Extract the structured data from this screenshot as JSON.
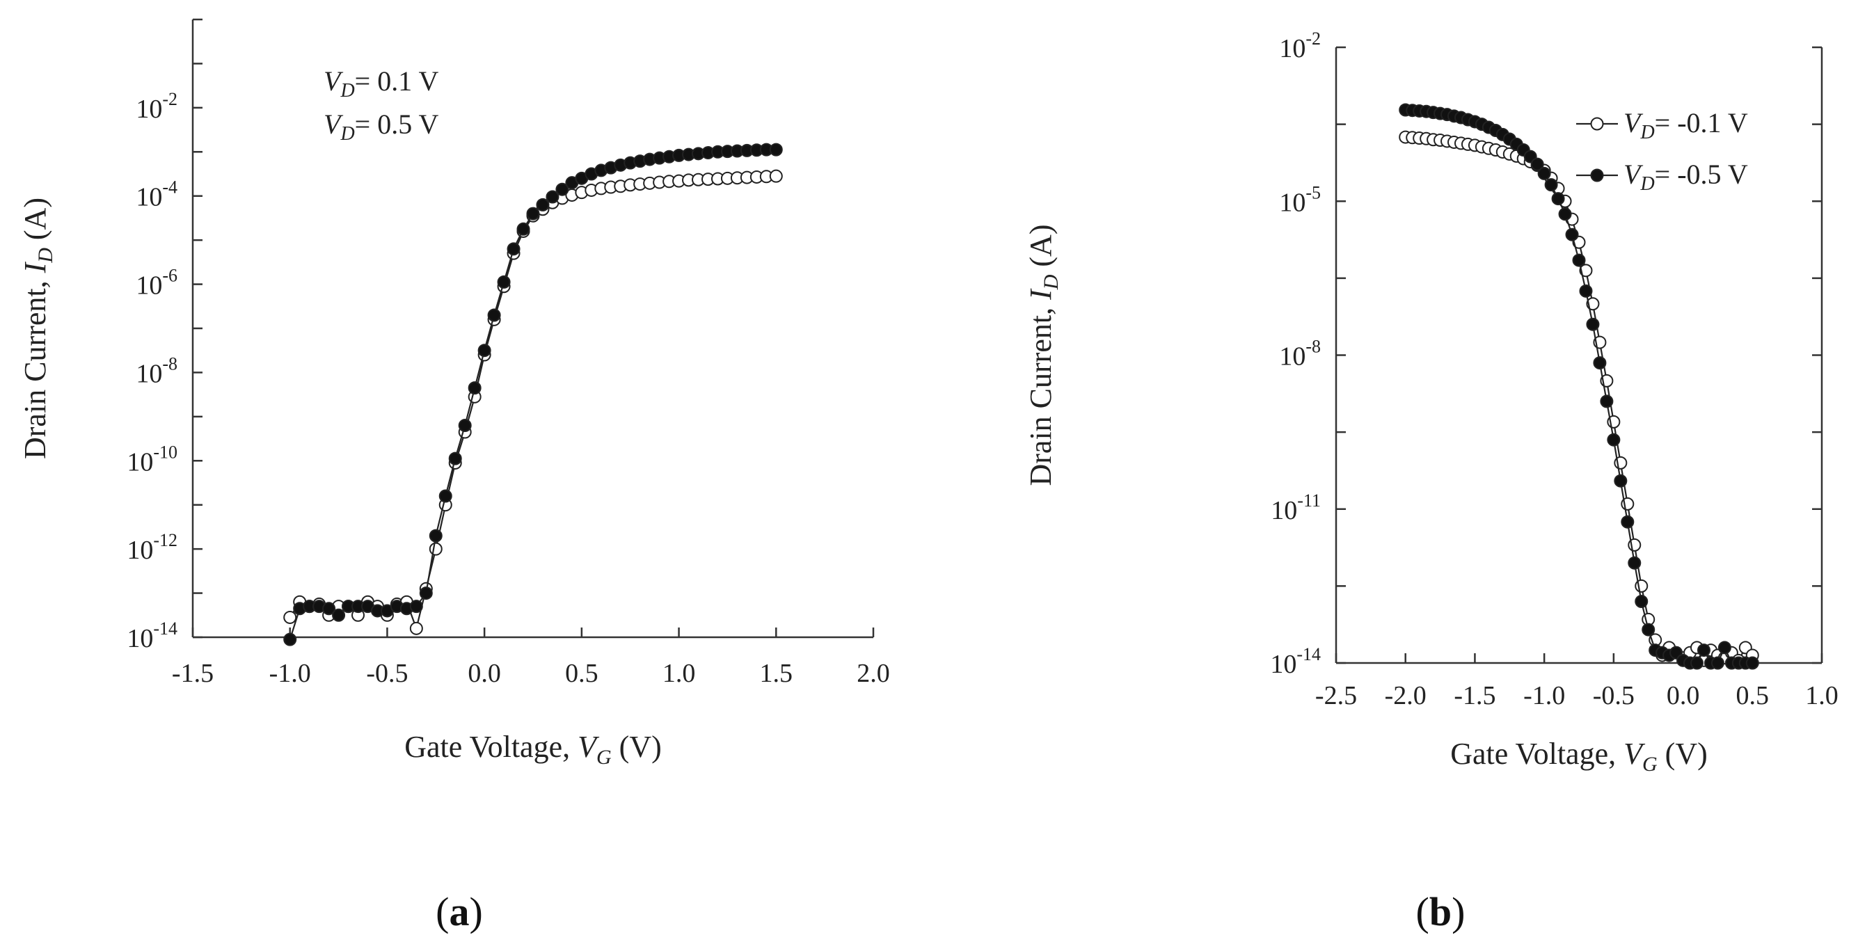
{
  "chart_data": [
    {
      "id": "a",
      "type": "line",
      "panel_label": "a",
      "xlabel": {
        "text": "Gate Voltage, ",
        "var": "V",
        "sub": "G",
        "unit": " (V)"
      },
      "ylabel": {
        "text": "Drain Current, ",
        "var": "I",
        "sub": "D",
        "unit": " (A)"
      },
      "xlim": [
        -1.5,
        2.0
      ],
      "ylim_log10": [
        -14,
        0
      ],
      "x_ticks": [
        "-1.5",
        "-1.0",
        "-0.5",
        "0.0",
        "0.5",
        "1.0",
        "1.5",
        "2.0"
      ],
      "y_ticks": [
        {
          "exp": "-14",
          "value": -14
        },
        {
          "exp": "-12",
          "value": -12
        },
        {
          "exp": "-10",
          "value": -10
        },
        {
          "exp": "-8",
          "value": -8
        },
        {
          "exp": "-6",
          "value": -6
        },
        {
          "exp": "-4",
          "value": -4
        },
        {
          "exp": "-2",
          "value": -2
        }
      ],
      "legend": [
        {
          "var": "V",
          "sub": "D",
          "text": "= 0.1 V",
          "marker": "open"
        },
        {
          "var": "V",
          "sub": "D",
          "text": "= 0.5 V",
          "marker": "filled"
        }
      ],
      "series": [
        {
          "name": "VD = 0.1 V",
          "marker": "open",
          "x": [
            -1.0,
            -0.95,
            -0.9,
            -0.85,
            -0.8,
            -0.75,
            -0.7,
            -0.65,
            -0.6,
            -0.55,
            -0.5,
            -0.45,
            -0.4,
            -0.35,
            -0.3,
            -0.25,
            -0.2,
            -0.15,
            -0.1,
            -0.05,
            0.0,
            0.05,
            0.1,
            0.15,
            0.2,
            0.25,
            0.3,
            0.35,
            0.4,
            0.45,
            0.5,
            0.55,
            0.6,
            0.65,
            0.7,
            0.75,
            0.8,
            0.85,
            0.9,
            0.95,
            1.0,
            1.05,
            1.1,
            1.15,
            1.2,
            1.25,
            1.3,
            1.35,
            1.4,
            1.45,
            1.5
          ],
          "log10_y": [
            -13.55,
            -13.2,
            -13.3,
            -13.25,
            -13.5,
            -13.3,
            -13.3,
            -13.5,
            -13.2,
            -13.3,
            -13.5,
            -13.25,
            -13.2,
            -13.8,
            -12.9,
            -12.0,
            -11.0,
            -10.05,
            -9.35,
            -8.55,
            -7.6,
            -6.8,
            -6.05,
            -5.3,
            -4.8,
            -4.45,
            -4.3,
            -4.15,
            -4.05,
            -3.98,
            -3.92,
            -3.87,
            -3.83,
            -3.8,
            -3.78,
            -3.75,
            -3.73,
            -3.71,
            -3.69,
            -3.67,
            -3.66,
            -3.64,
            -3.63,
            -3.62,
            -3.61,
            -3.6,
            -3.59,
            -3.58,
            -3.57,
            -3.56,
            -3.55
          ]
        },
        {
          "name": "VD = 0.5 V",
          "marker": "filled",
          "x": [
            -1.0,
            -0.95,
            -0.9,
            -0.85,
            -0.8,
            -0.75,
            -0.7,
            -0.65,
            -0.6,
            -0.55,
            -0.5,
            -0.45,
            -0.4,
            -0.35,
            -0.3,
            -0.25,
            -0.2,
            -0.15,
            -0.1,
            -0.05,
            0.0,
            0.05,
            0.1,
            0.15,
            0.2,
            0.25,
            0.3,
            0.35,
            0.4,
            0.45,
            0.5,
            0.55,
            0.6,
            0.65,
            0.7,
            0.75,
            0.8,
            0.85,
            0.9,
            0.95,
            1.0,
            1.05,
            1.1,
            1.15,
            1.2,
            1.25,
            1.3,
            1.35,
            1.4,
            1.45,
            1.5
          ],
          "log10_y": [
            -14.05,
            -13.35,
            -13.3,
            -13.3,
            -13.35,
            -13.5,
            -13.3,
            -13.3,
            -13.3,
            -13.4,
            -13.4,
            -13.3,
            -13.35,
            -13.3,
            -13.0,
            -11.7,
            -10.8,
            -9.95,
            -9.2,
            -8.35,
            -7.5,
            -6.7,
            -5.95,
            -5.2,
            -4.75,
            -4.4,
            -4.2,
            -4.02,
            -3.85,
            -3.7,
            -3.6,
            -3.5,
            -3.42,
            -3.36,
            -3.3,
            -3.25,
            -3.21,
            -3.17,
            -3.14,
            -3.11,
            -3.08,
            -3.06,
            -3.04,
            -3.02,
            -3.0,
            -2.99,
            -2.98,
            -2.97,
            -2.96,
            -2.95,
            -2.95
          ]
        }
      ]
    },
    {
      "id": "b",
      "type": "line",
      "panel_label": "b",
      "xlabel": {
        "text": "Gate Voltage, ",
        "var": "V",
        "sub": "G",
        "unit": " (V)"
      },
      "ylabel": {
        "text": "Drain Current, ",
        "var": "I",
        "sub": "D",
        "unit": " (A)"
      },
      "xlim": [
        -2.5,
        1.0
      ],
      "ylim_log10": [
        -14,
        -2
      ],
      "x_ticks": [
        "-2.5",
        "-2.0",
        "-1.5",
        "-1.0",
        "-0.5",
        "0.0",
        "0.5",
        "1.0"
      ],
      "y_ticks": [
        {
          "exp": "-14",
          "value": -14
        },
        {
          "exp": "-11",
          "value": -11
        },
        {
          "exp": "-8",
          "value": -8
        },
        {
          "exp": "-5",
          "value": -5
        },
        {
          "exp": "-2",
          "value": -2
        }
      ],
      "legend": [
        {
          "var": "V",
          "sub": "D",
          "text": "= -0.1 V",
          "marker": "open"
        },
        {
          "var": "V",
          "sub": "D",
          "text": "= -0.5 V",
          "marker": "filled"
        }
      ],
      "series": [
        {
          "name": "VD = -0.1 V",
          "marker": "open",
          "x": [
            -2.0,
            -1.95,
            -1.9,
            -1.85,
            -1.8,
            -1.75,
            -1.7,
            -1.65,
            -1.6,
            -1.55,
            -1.5,
            -1.45,
            -1.4,
            -1.35,
            -1.3,
            -1.25,
            -1.2,
            -1.15,
            -1.1,
            -1.05,
            -1.0,
            -0.95,
            -0.9,
            -0.85,
            -0.8,
            -0.75,
            -0.7,
            -0.65,
            -0.6,
            -0.55,
            -0.5,
            -0.45,
            -0.4,
            -0.35,
            -0.3,
            -0.25,
            -0.2,
            -0.15,
            -0.1,
            -0.05,
            0.0,
            0.05,
            0.1,
            0.15,
            0.2,
            0.25,
            0.3,
            0.35,
            0.4,
            0.45,
            0.5
          ],
          "log10_y": [
            -3.75,
            -3.76,
            -3.77,
            -3.78,
            -3.8,
            -3.81,
            -3.83,
            -3.85,
            -3.87,
            -3.89,
            -3.91,
            -3.94,
            -3.97,
            -4.0,
            -4.04,
            -4.08,
            -4.12,
            -4.17,
            -4.23,
            -4.3,
            -4.4,
            -4.55,
            -4.75,
            -5.0,
            -5.35,
            -5.8,
            -6.35,
            -7.0,
            -7.75,
            -8.5,
            -9.3,
            -10.1,
            -10.9,
            -11.7,
            -12.5,
            -13.15,
            -13.55,
            -13.85,
            -13.7,
            -13.8,
            -13.9,
            -13.8,
            -13.7,
            -13.95,
            -13.75,
            -13.85,
            -13.9,
            -13.8,
            -13.95,
            -13.7,
            -13.85
          ]
        },
        {
          "name": "VD = -0.5 V",
          "marker": "filled",
          "x": [
            -2.0,
            -1.95,
            -1.9,
            -1.85,
            -1.8,
            -1.75,
            -1.7,
            -1.65,
            -1.6,
            -1.55,
            -1.5,
            -1.45,
            -1.4,
            -1.35,
            -1.3,
            -1.25,
            -1.2,
            -1.15,
            -1.1,
            -1.05,
            -1.0,
            -0.95,
            -0.9,
            -0.85,
            -0.8,
            -0.75,
            -0.7,
            -0.65,
            -0.6,
            -0.55,
            -0.5,
            -0.45,
            -0.4,
            -0.35,
            -0.3,
            -0.25,
            -0.2,
            -0.15,
            -0.1,
            -0.05,
            0.0,
            0.05,
            0.1,
            0.15,
            0.2,
            0.25,
            0.3,
            0.35,
            0.4,
            0.45,
            0.5
          ],
          "log10_y": [
            -3.22,
            -3.23,
            -3.24,
            -3.25,
            -3.27,
            -3.29,
            -3.31,
            -3.34,
            -3.37,
            -3.41,
            -3.45,
            -3.5,
            -3.56,
            -3.62,
            -3.7,
            -3.79,
            -3.89,
            -4.0,
            -4.13,
            -4.28,
            -4.46,
            -4.68,
            -4.95,
            -5.25,
            -5.65,
            -6.15,
            -6.75,
            -7.4,
            -8.15,
            -8.9,
            -9.65,
            -10.45,
            -11.25,
            -12.05,
            -12.8,
            -13.35,
            -13.75,
            -13.8,
            -13.85,
            -13.8,
            -13.95,
            -14.0,
            -14.0,
            -13.75,
            -14.0,
            -14.0,
            -13.7,
            -14.0,
            -14.0,
            -14.0,
            -14.0
          ]
        }
      ]
    }
  ]
}
